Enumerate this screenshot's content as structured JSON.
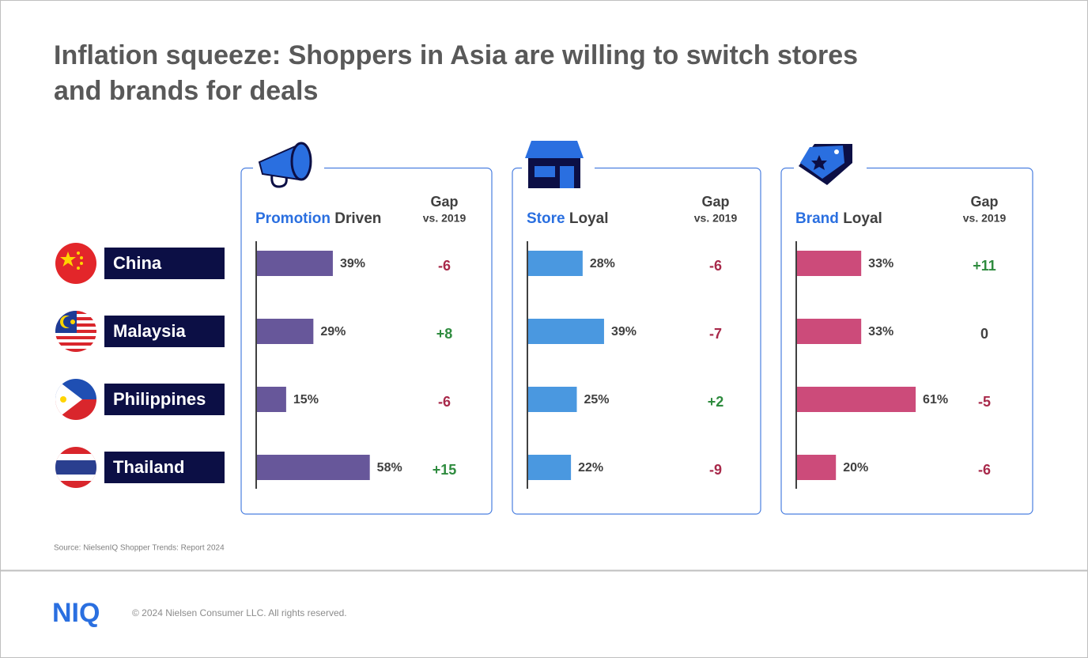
{
  "title_lines": [
    "Inflation squeeze: Shoppers in Asia are willing to switch stores",
    "and brands for deals"
  ],
  "countries": [
    "China",
    "Malaysia",
    "Philippines",
    "Thailand"
  ],
  "gap_colors": {
    "positive": "#2e8b3e",
    "negative": "#a8294a",
    "zero": "#404040"
  },
  "chart_data": [
    {
      "type": "bar",
      "orientation": "horizontal",
      "title_highlight": "Promotion",
      "title_rest": "Driven",
      "gap_header": "Gap",
      "gap_subheader": "vs. 2019",
      "color": "#67579a",
      "values": [
        39,
        29,
        15,
        58
      ],
      "value_labels": [
        "39%",
        "29%",
        "15%",
        "58%"
      ],
      "gaps": [
        -6,
        8,
        -6,
        15
      ],
      "gap_labels": [
        "-6",
        "+8",
        "-6",
        "+15"
      ]
    },
    {
      "type": "bar",
      "orientation": "horizontal",
      "title_highlight": "Store",
      "title_rest": "Loyal",
      "gap_header": "Gap",
      "gap_subheader": "vs. 2019",
      "color": "#4a98e0",
      "values": [
        28,
        39,
        25,
        22
      ],
      "value_labels": [
        "28%",
        "39%",
        "25%",
        "22%"
      ],
      "gaps": [
        -6,
        -7,
        2,
        -9
      ],
      "gap_labels": [
        "-6",
        "-7",
        "+2",
        "-9"
      ]
    },
    {
      "type": "bar",
      "orientation": "horizontal",
      "title_highlight": "Brand",
      "title_rest": "Loyal",
      "gap_header": "Gap",
      "gap_subheader": "vs. 2019",
      "color": "#cc4b7a",
      "values": [
        33,
        33,
        61,
        20
      ],
      "value_labels": [
        "33%",
        "33%",
        "61%",
        "20%"
      ],
      "gaps": [
        11,
        0,
        -5,
        -6
      ],
      "gap_labels": [
        "+11",
        "0",
        "-5",
        "-6"
      ]
    }
  ],
  "source": "Source: NielsenIQ  Shopper Trends: Report 2024",
  "logo": "NIQ",
  "copyright": "© 2024 Nielsen Consumer LLC. All rights reserved."
}
